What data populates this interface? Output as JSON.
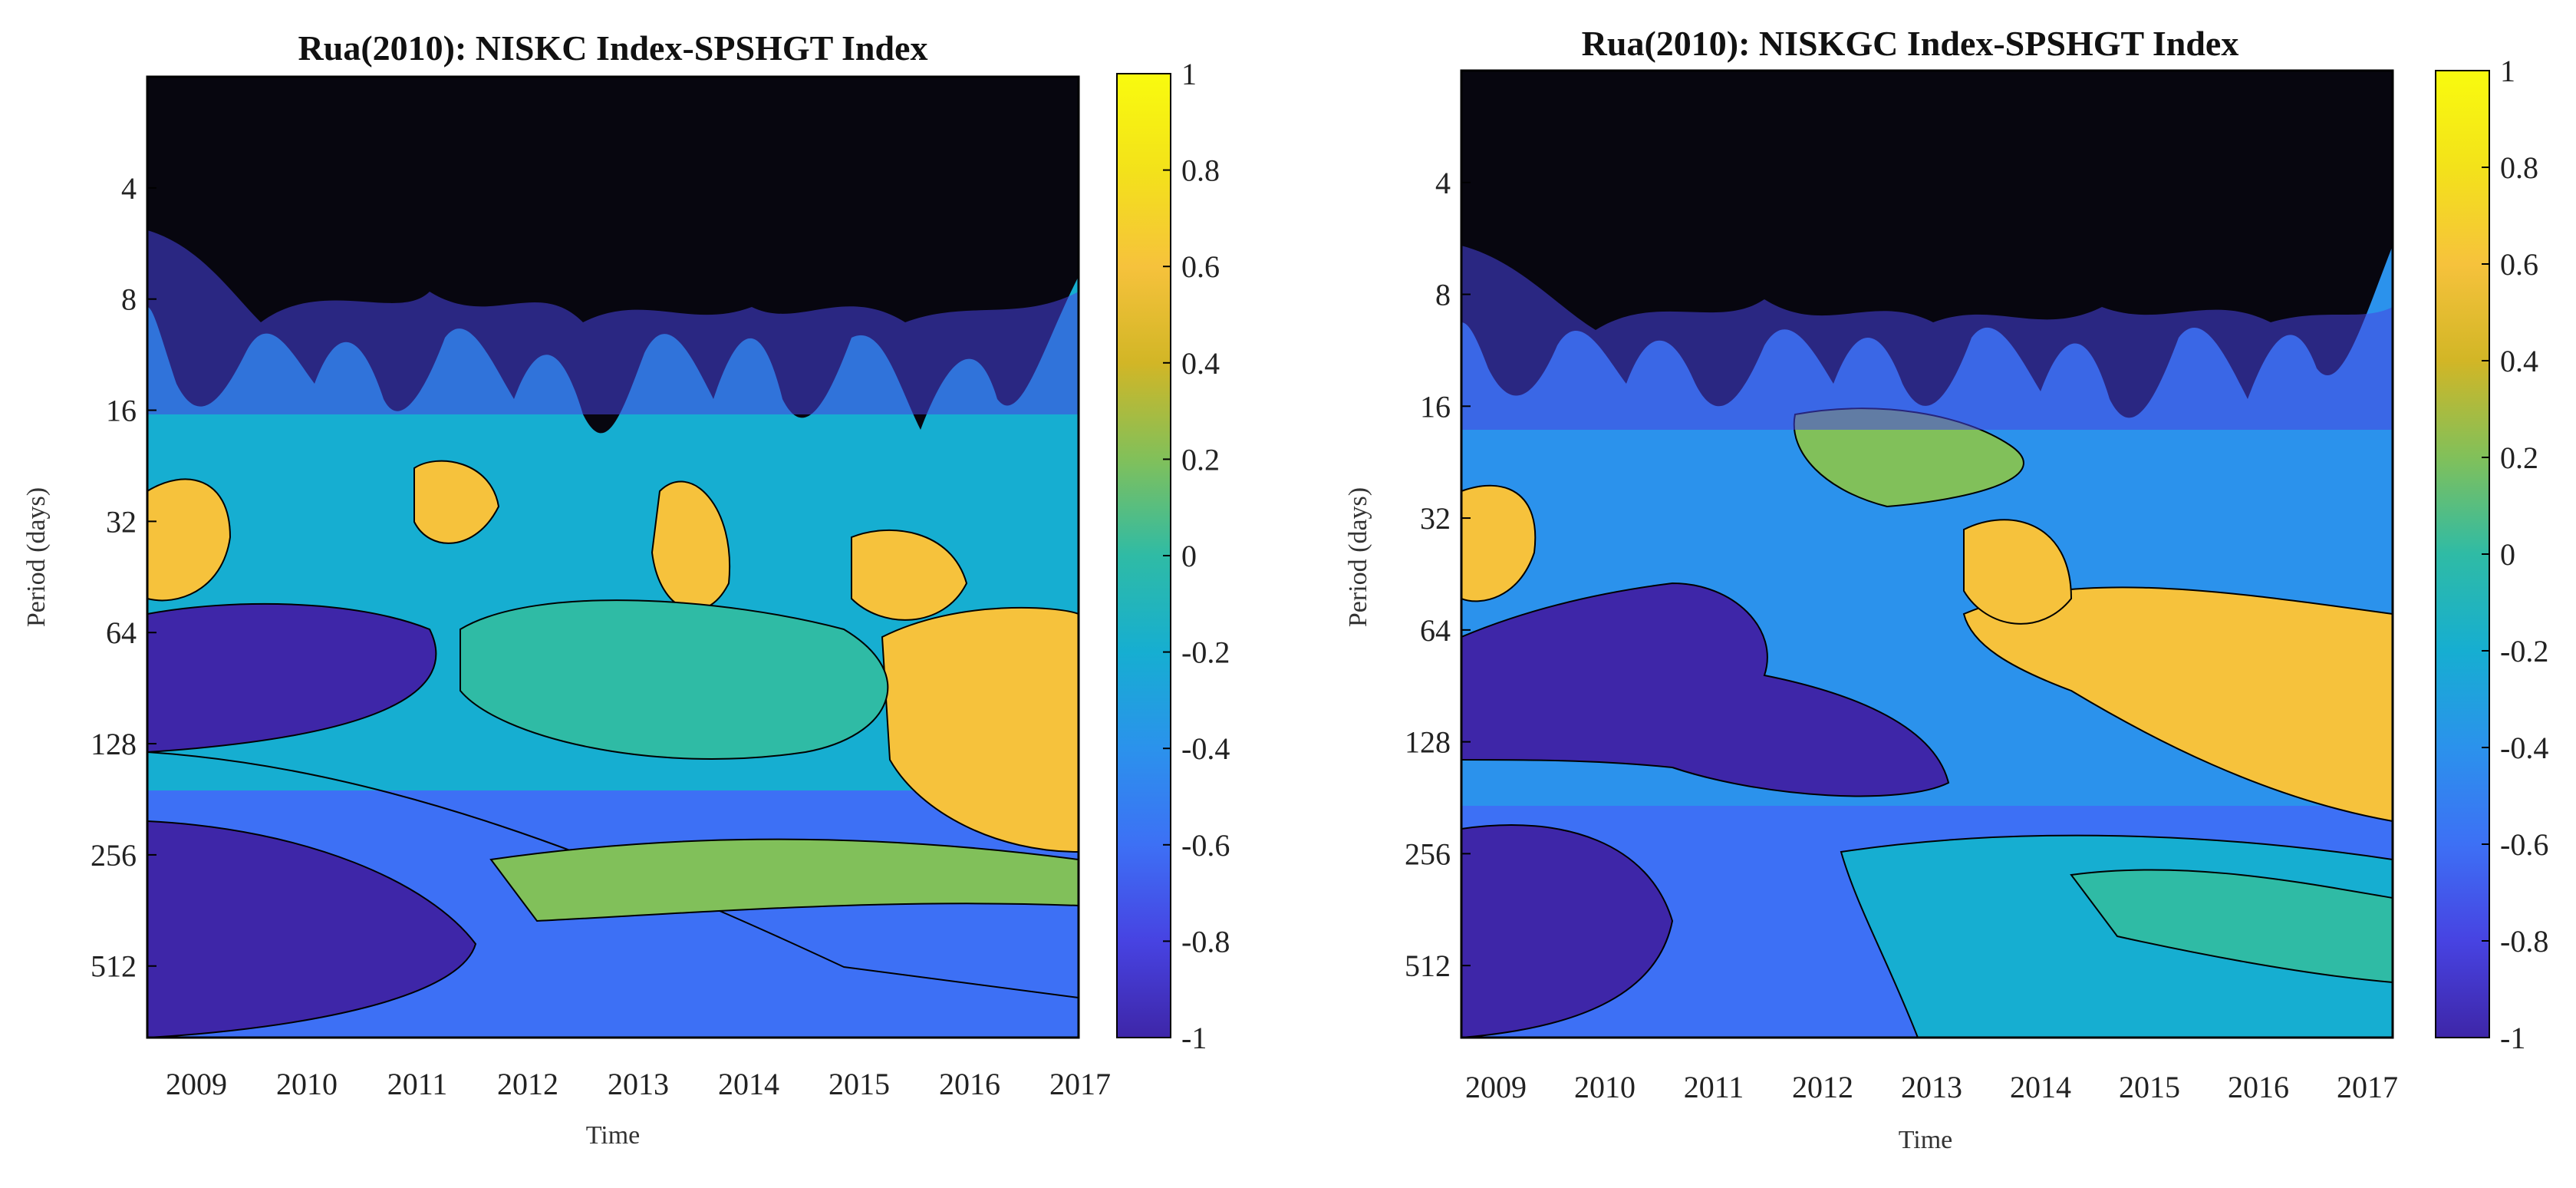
{
  "chart_data": [
    {
      "type": "heatmap",
      "title": "Rua(2010): NISKC Index-SPSHGT Index",
      "xlabel": "Time",
      "ylabel": "Period (days)",
      "x_ticks": [
        "2009",
        "2010",
        "2011",
        "2012",
        "2013",
        "2014",
        "2015",
        "2016",
        "2017"
      ],
      "y_ticks": [
        "4",
        "8",
        "16",
        "32",
        "64",
        "128",
        "256",
        "512"
      ],
      "y_scale": "log2",
      "ylim": [
        2,
        800
      ],
      "colorbar": {
        "ticks": [
          "1",
          "0.8",
          "0.6",
          "0.4",
          "0.2",
          "0",
          "-0.2",
          "-0.4",
          "-0.6",
          "-0.8",
          "-1"
        ],
        "range": [
          -1,
          1
        ]
      }
    },
    {
      "type": "heatmap",
      "title": "Rua(2010): NISKGC Index-SPSHGT Index",
      "xlabel": "Time",
      "ylabel": "Period (days)",
      "x_ticks": [
        "2009",
        "2010",
        "2011",
        "2012",
        "2013",
        "2014",
        "2015",
        "2016",
        "2017"
      ],
      "y_ticks": [
        "4",
        "8",
        "16",
        "32",
        "64",
        "128",
        "256",
        "512"
      ],
      "y_scale": "log2",
      "ylim": [
        2,
        800
      ],
      "colorbar": {
        "ticks": [
          "1",
          "0.8",
          "0.6",
          "0.4",
          "0.2",
          "0",
          "-0.2",
          "-0.4",
          "-0.6",
          "-0.8",
          "-1"
        ],
        "range": [
          -1,
          1
        ]
      }
    }
  ],
  "colormap": [
    "#3e26a8",
    "#4743e2",
    "#3d70f5",
    "#2b92ec",
    "#16aed1",
    "#2fbba5",
    "#81c05a",
    "#d2b626",
    "#f6c23c",
    "#f3e21a",
    "#f9fb0e"
  ]
}
